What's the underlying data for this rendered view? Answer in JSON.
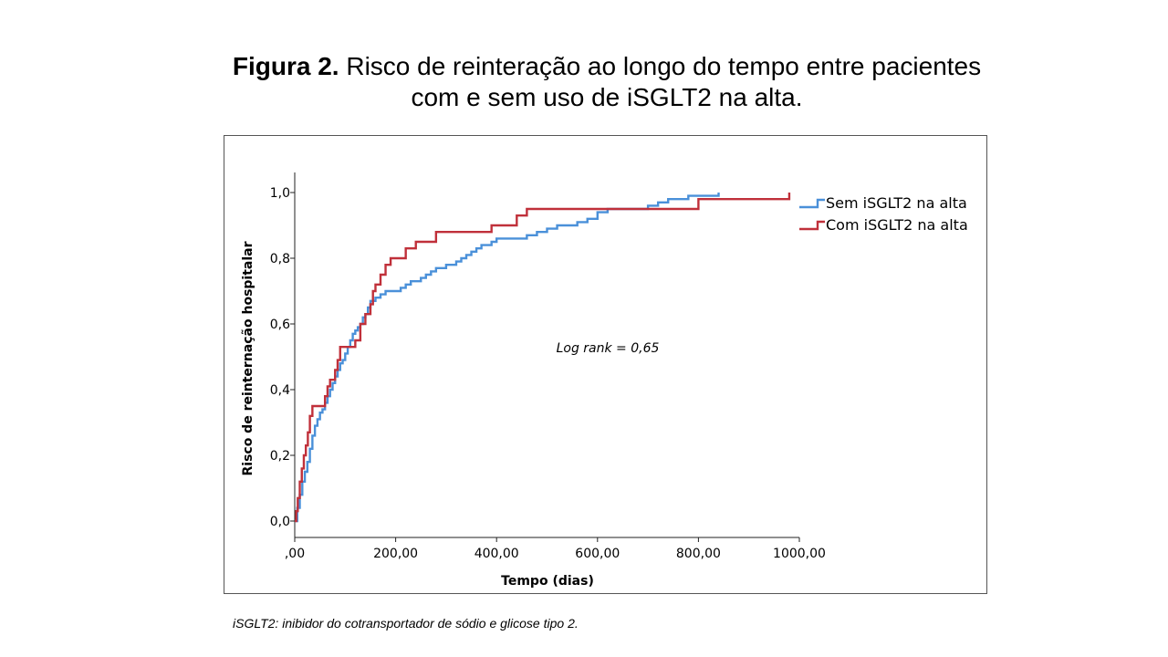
{
  "slide": {
    "title_bold": "Figura 2.",
    "title_rest": " Risco de reinteração ao longo do tempo entre pacientes",
    "title_line2": "com e sem uso de iSGLT2 na alta.",
    "footnote": "iSGLT2: inibidor do cotransportador de sódio e glicose tipo 2."
  },
  "chart_data": {
    "type": "line",
    "title": "",
    "xlabel": "Tempo (dias)",
    "ylabel": "Risco de reinternação hospitalar",
    "xlim": [
      0,
      1000
    ],
    "ylim": [
      0,
      1.0
    ],
    "xticks": [
      0,
      200,
      400,
      600,
      800,
      1000
    ],
    "xtick_labels": [
      ",00",
      "200,00",
      "400,00",
      "600,00",
      "800,00",
      "1000,00"
    ],
    "yticks": [
      0,
      0.2,
      0.4,
      0.6,
      0.8,
      1.0
    ],
    "ytick_labels": [
      "0,0",
      "0,2",
      "0,4",
      "0,6",
      "0,8",
      "1,0"
    ],
    "grid": false,
    "legend_position": "top-right",
    "annotation": "Log rank = 0,65",
    "step": true,
    "series": [
      {
        "name": "Sem iSGLT2 na alta",
        "color": "#4a90d9",
        "x": [
          0,
          5,
          10,
          15,
          20,
          25,
          30,
          35,
          40,
          45,
          50,
          55,
          60,
          65,
          70,
          75,
          80,
          85,
          90,
          95,
          100,
          105,
          110,
          115,
          120,
          125,
          130,
          135,
          140,
          145,
          150,
          160,
          170,
          180,
          190,
          200,
          210,
          220,
          230,
          240,
          250,
          260,
          270,
          280,
          290,
          300,
          310,
          320,
          330,
          340,
          350,
          360,
          370,
          380,
          390,
          400,
          410,
          420,
          430,
          440,
          460,
          480,
          500,
          520,
          540,
          560,
          580,
          600,
          620,
          640,
          660,
          680,
          700,
          720,
          740,
          760,
          780,
          800,
          820,
          840
        ],
        "y": [
          0.0,
          0.04,
          0.08,
          0.12,
          0.15,
          0.18,
          0.22,
          0.26,
          0.29,
          0.31,
          0.33,
          0.34,
          0.36,
          0.38,
          0.4,
          0.42,
          0.44,
          0.46,
          0.48,
          0.49,
          0.51,
          0.53,
          0.55,
          0.57,
          0.58,
          0.59,
          0.6,
          0.62,
          0.63,
          0.65,
          0.67,
          0.68,
          0.69,
          0.7,
          0.7,
          0.7,
          0.71,
          0.72,
          0.73,
          0.73,
          0.74,
          0.75,
          0.76,
          0.77,
          0.77,
          0.78,
          0.78,
          0.79,
          0.8,
          0.81,
          0.82,
          0.83,
          0.84,
          0.84,
          0.85,
          0.86,
          0.86,
          0.86,
          0.86,
          0.86,
          0.87,
          0.88,
          0.89,
          0.9,
          0.9,
          0.91,
          0.92,
          0.94,
          0.95,
          0.95,
          0.95,
          0.95,
          0.96,
          0.97,
          0.98,
          0.98,
          0.99,
          0.99,
          0.99,
          1.0
        ]
      },
      {
        "name": "Com iSGLT2 na alta",
        "color": "#c0303a",
        "x": [
          0,
          3,
          6,
          10,
          14,
          18,
          22,
          26,
          30,
          35,
          40,
          50,
          60,
          65,
          70,
          80,
          85,
          90,
          100,
          110,
          120,
          130,
          140,
          150,
          155,
          160,
          170,
          180,
          190,
          200,
          210,
          220,
          240,
          260,
          280,
          300,
          350,
          380,
          390,
          400,
          440,
          460,
          500,
          550,
          580,
          600,
          650,
          700,
          750,
          780,
          800,
          850,
          900,
          950,
          975,
          980
        ],
        "y": [
          0.0,
          0.03,
          0.07,
          0.12,
          0.16,
          0.2,
          0.23,
          0.27,
          0.32,
          0.35,
          0.35,
          0.35,
          0.38,
          0.41,
          0.43,
          0.46,
          0.49,
          0.53,
          0.53,
          0.53,
          0.55,
          0.6,
          0.63,
          0.66,
          0.7,
          0.72,
          0.75,
          0.78,
          0.8,
          0.8,
          0.8,
          0.83,
          0.85,
          0.85,
          0.88,
          0.88,
          0.88,
          0.88,
          0.9,
          0.9,
          0.93,
          0.95,
          0.95,
          0.95,
          0.95,
          0.95,
          0.95,
          0.95,
          0.95,
          0.95,
          0.98,
          0.98,
          0.98,
          0.98,
          0.98,
          1.0
        ]
      }
    ]
  }
}
